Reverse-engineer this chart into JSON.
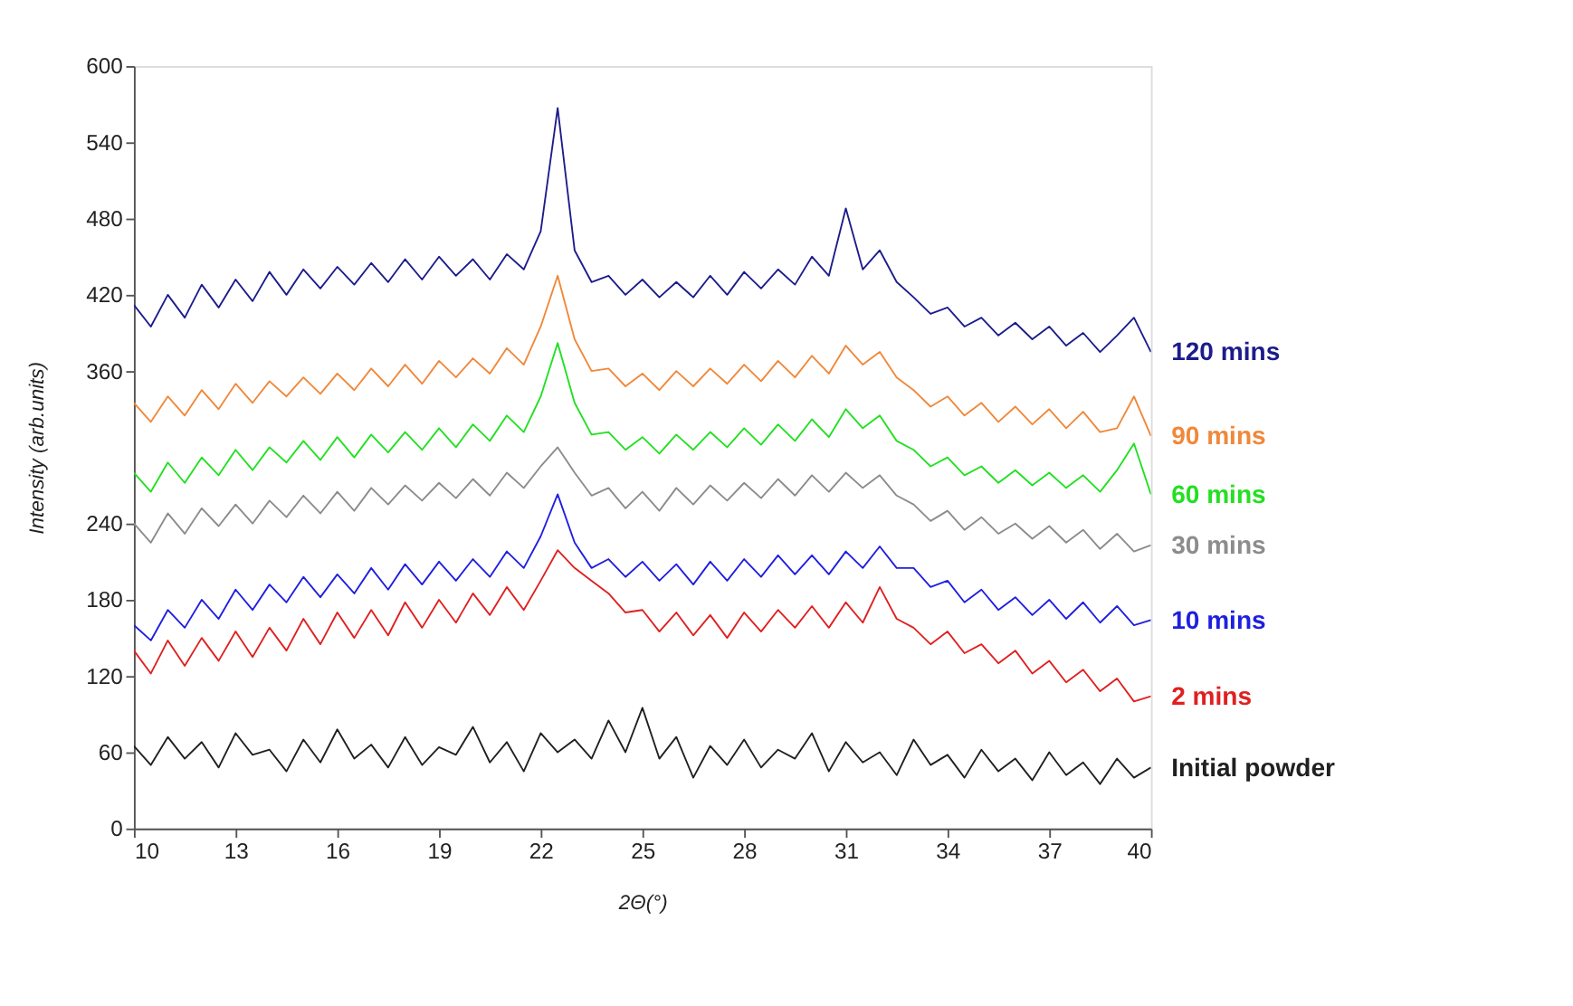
{
  "chart_data": {
    "type": "line",
    "xlabel": "2Θ(°)",
    "ylabel": "Intensity (arb.units)",
    "x": [
      10,
      10.5,
      11,
      11.5,
      12,
      12.5,
      13,
      13.5,
      14,
      14.5,
      15,
      15.5,
      16,
      16.5,
      17,
      17.5,
      18,
      18.5,
      19,
      19.5,
      20,
      20.5,
      21,
      21.5,
      22,
      22.5,
      23,
      23.5,
      24,
      24.5,
      25,
      25.5,
      26,
      26.5,
      27,
      27.5,
      28,
      28.5,
      29,
      29.5,
      30,
      30.5,
      31,
      31.5,
      32,
      32.5,
      33,
      33.5,
      34,
      34.5,
      35,
      35.5,
      36,
      36.5,
      37,
      37.5,
      38,
      38.5,
      39,
      39.5,
      40
    ],
    "xlim": [
      10,
      40
    ],
    "xticks": [
      10,
      13,
      16,
      19,
      22,
      25,
      28,
      31,
      34,
      37,
      40
    ],
    "ylim": [
      0,
      600
    ],
    "yticks": [
      0,
      60,
      120,
      180,
      240,
      360,
      420,
      480,
      540,
      600
    ],
    "grid": false,
    "line_style": "solid",
    "series": [
      {
        "name": "120 mins",
        "color": "#1c1c8c",
        "values": [
          412,
          395,
          420,
          402,
          428,
          410,
          432,
          415,
          438,
          420,
          440,
          425,
          442,
          428,
          445,
          430,
          448,
          432,
          450,
          435,
          448,
          432,
          452,
          440,
          470,
          567,
          455,
          430,
          435,
          420,
          432,
          418,
          430,
          418,
          435,
          420,
          438,
          425,
          440,
          428,
          450,
          435,
          488,
          440,
          455,
          430,
          418,
          405,
          410,
          395,
          402,
          388,
          398,
          385,
          395,
          380,
          390,
          375,
          388,
          402,
          375
        ]
      },
      {
        "name": "90 mins",
        "color": "#f0883a",
        "values": [
          335,
          320,
          340,
          325,
          345,
          330,
          350,
          335,
          352,
          340,
          355,
          342,
          358,
          345,
          362,
          348,
          365,
          350,
          368,
          355,
          370,
          358,
          378,
          365,
          395,
          435,
          385,
          360,
          362,
          348,
          358,
          345,
          360,
          348,
          362,
          350,
          365,
          352,
          368,
          355,
          372,
          358,
          380,
          365,
          375,
          355,
          345,
          332,
          340,
          325,
          335,
          320,
          332,
          318,
          330,
          315,
          328,
          312,
          315,
          340,
          309
        ]
      },
      {
        "name": "60 mins",
        "color": "#22e022",
        "values": [
          280,
          265,
          288,
          272,
          292,
          278,
          298,
          282,
          300,
          288,
          305,
          290,
          308,
          292,
          310,
          296,
          312,
          298,
          315,
          300,
          318,
          305,
          325,
          312,
          340,
          382,
          335,
          310,
          312,
          298,
          308,
          295,
          310,
          298,
          312,
          300,
          315,
          302,
          318,
          305,
          322,
          308,
          330,
          315,
          325,
          305,
          298,
          285,
          292,
          278,
          285,
          272,
          282,
          270,
          280,
          268,
          278,
          265,
          282,
          303,
          263
        ]
      },
      {
        "name": "30 mins",
        "color": "#8c8c8c",
        "values": [
          240,
          225,
          248,
          232,
          252,
          238,
          255,
          240,
          258,
          245,
          262,
          248,
          265,
          250,
          268,
          255,
          270,
          258,
          272,
          260,
          275,
          262,
          280,
          268,
          285,
          300,
          280,
          262,
          268,
          252,
          265,
          250,
          268,
          255,
          270,
          258,
          272,
          260,
          275,
          262,
          278,
          265,
          280,
          268,
          278,
          262,
          255,
          242,
          250,
          235,
          245,
          232,
          240,
          228,
          238,
          225,
          235,
          220,
          232,
          218,
          223
        ]
      },
      {
        "name": "10 mins",
        "color": "#1f1fe0",
        "values": [
          160,
          148,
          172,
          158,
          180,
          165,
          188,
          172,
          192,
          178,
          198,
          182,
          200,
          185,
          205,
          188,
          208,
          192,
          210,
          195,
          212,
          198,
          218,
          205,
          230,
          263,
          225,
          205,
          212,
          198,
          210,
          195,
          208,
          192,
          210,
          195,
          212,
          198,
          215,
          200,
          215,
          200,
          218,
          205,
          222,
          205,
          205,
          190,
          195,
          178,
          188,
          172,
          182,
          168,
          180,
          165,
          178,
          162,
          175,
          160,
          164
        ]
      },
      {
        "name": "2 mins",
        "color": "#e02020",
        "values": [
          140,
          122,
          148,
          128,
          150,
          132,
          155,
          135,
          158,
          140,
          165,
          145,
          170,
          150,
          172,
          152,
          178,
          158,
          180,
          162,
          185,
          168,
          190,
          172,
          195,
          219,
          205,
          195,
          185,
          170,
          172,
          155,
          170,
          152,
          168,
          150,
          170,
          155,
          172,
          158,
          175,
          158,
          178,
          162,
          190,
          165,
          158,
          145,
          155,
          138,
          145,
          130,
          140,
          122,
          132,
          115,
          125,
          108,
          118,
          100,
          104
        ]
      },
      {
        "name": "Initial powder",
        "color": "#202020",
        "values": [
          65,
          50,
          72,
          55,
          68,
          48,
          75,
          58,
          62,
          45,
          70,
          52,
          78,
          55,
          66,
          48,
          72,
          50,
          64,
          58,
          80,
          52,
          68,
          45,
          75,
          60,
          70,
          55,
          85,
          60,
          95,
          55,
          72,
          40,
          65,
          50,
          70,
          48,
          62,
          55,
          75,
          45,
          68,
          52,
          60,
          42,
          70,
          50,
          58,
          40,
          62,
          45,
          55,
          38,
          60,
          42,
          52,
          35,
          55,
          40,
          48
        ]
      }
    ]
  }
}
